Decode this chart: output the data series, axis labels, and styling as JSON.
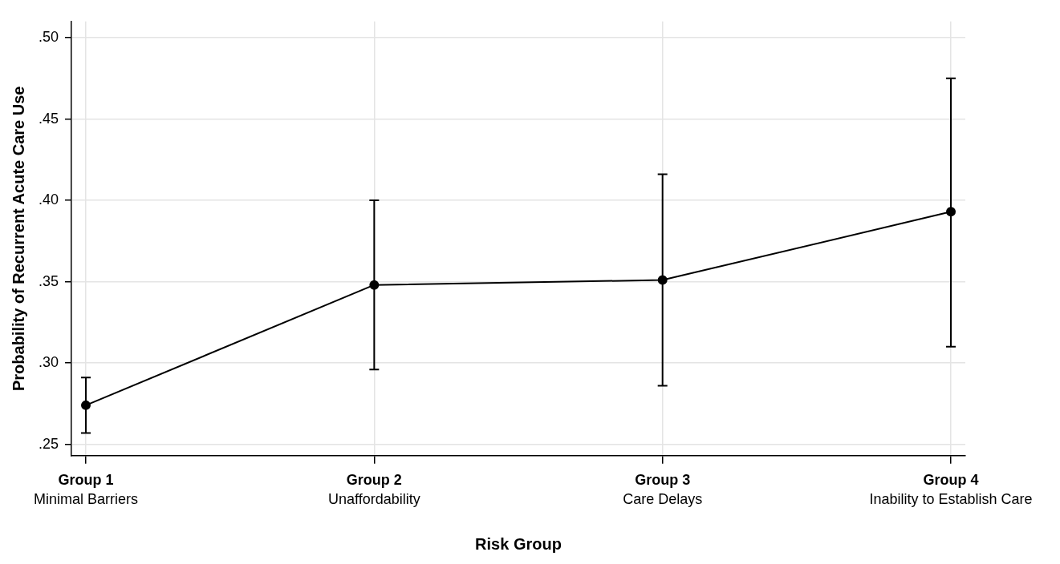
{
  "chart_data": {
    "type": "line",
    "xlabel": "Risk Group",
    "ylabel": "Probability of Recurrent Acute Care Use",
    "categories": [
      "Group 1\nMinimal Barriers",
      "Group 2\nUnaffordability",
      "Group 3\nCare Delays",
      "Group 4\nInability to Establish Care"
    ],
    "series": [
      {
        "color": "#000000",
        "values": [
          0.274,
          0.348,
          0.351,
          0.393
        ],
        "errors": [
          [
            0.257,
            0.291
          ],
          [
            0.296,
            0.4
          ],
          [
            0.286,
            0.416
          ],
          [
            0.31,
            0.475
          ]
        ]
      }
    ],
    "ylim": [
      0.243,
      0.51
    ],
    "yticks": [
      {
        "value": 0.25,
        "label": ".25"
      },
      {
        "value": 0.3,
        "label": ".30"
      },
      {
        "value": 0.35,
        "label": ".35"
      },
      {
        "value": 0.4,
        "label": ".40"
      },
      {
        "value": 0.45,
        "label": ".45"
      },
      {
        "value": 0.5,
        "label": ".50"
      }
    ],
    "grid": true,
    "marker": "circle",
    "line_style": "solid"
  }
}
